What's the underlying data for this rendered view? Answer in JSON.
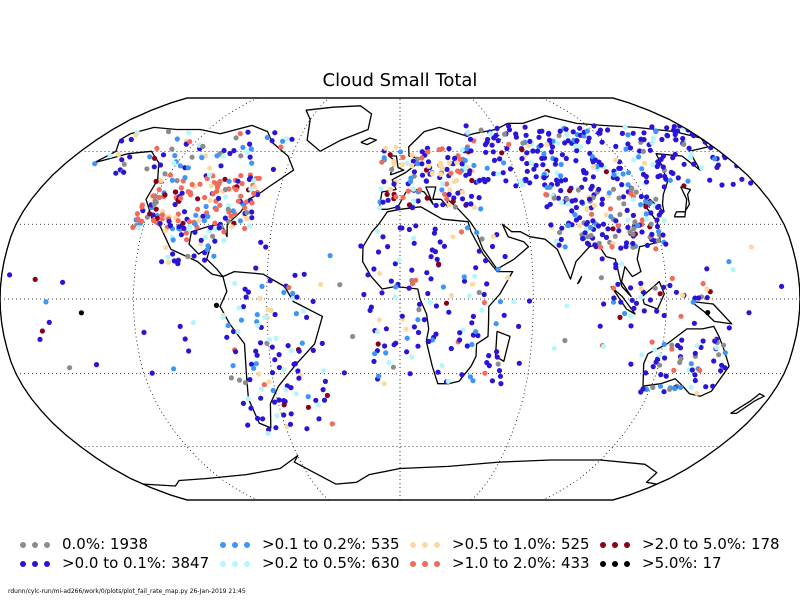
{
  "map": {
    "title": "Cloud Small Total",
    "projection": "Robinson",
    "graticule": "dotted",
    "legend": [
      {
        "label": "0.0%: 1938",
        "color": "#8c8c8c"
      },
      {
        "label": ">0.0 to 0.1%: 3847",
        "color": "#2a14d6"
      },
      {
        "label": ">0.1 to 0.2%: 535",
        "color": "#3d95f5"
      },
      {
        "label": ">0.2 to 0.5%: 630",
        "color": "#b4f6fb"
      },
      {
        "label": ">0.5 to 1.0%: 525",
        "color": "#fcd9a4"
      },
      {
        "label": ">1.0 to 2.0%: 433",
        "color": "#f26a5a"
      },
      {
        "label": ">2.0 to 5.0%: 178",
        "color": "#8a0018"
      },
      {
        "label": ">5.0%: 17",
        "color": "#000000"
      }
    ],
    "footer": "rdunn/cylc-run/mi-ad266/work/0/plots/plot_fail_rate_map.py   26-Jan-2019 21:45"
  }
}
